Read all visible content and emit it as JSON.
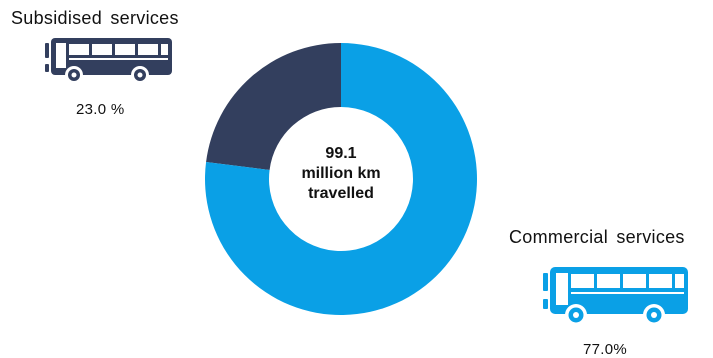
{
  "chart_data": {
    "type": "pie",
    "subtype": "donut",
    "center_text": {
      "value": "99.1",
      "unit": "million km",
      "verb": "travelled"
    },
    "slices": [
      {
        "name": "Subsidised services",
        "value": 23.0,
        "label": "23.0 %",
        "color": "#333f5e"
      },
      {
        "name": "Commercial services",
        "value": 77.0,
        "label": "77.0%",
        "color": "#0aa0e6"
      }
    ]
  },
  "icons": {
    "subsidised": {
      "icon": "bus-icon",
      "color": "#333f5e"
    },
    "commercial": {
      "icon": "bus-icon",
      "color": "#0aa0e6"
    }
  }
}
